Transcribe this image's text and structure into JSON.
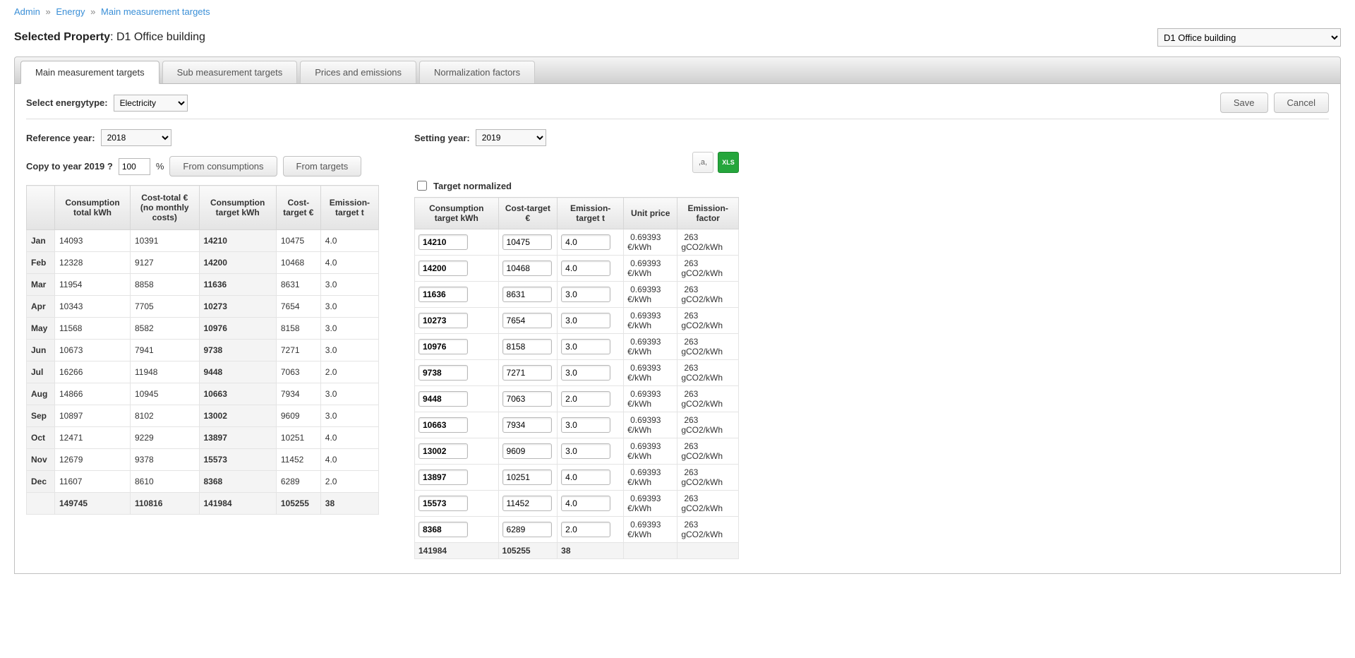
{
  "breadcrumbs": {
    "items": [
      "Admin",
      "Energy",
      "Main measurement targets"
    ]
  },
  "header": {
    "label": "Selected Property",
    "property_name": "D1 Office building",
    "property_select": "D1 Office building"
  },
  "tabs": [
    {
      "label": "Main measurement targets",
      "active": true
    },
    {
      "label": "Sub measurement targets",
      "active": false
    },
    {
      "label": "Prices and emissions",
      "active": false
    },
    {
      "label": "Normalization factors",
      "active": false
    }
  ],
  "controls": {
    "select_energytype_label": "Select energytype:",
    "energytype_value": "Electricity",
    "save_label": "Save",
    "cancel_label": "Cancel",
    "reference_year_label": "Reference year:",
    "reference_year_value": "2018",
    "setting_year_label": "Setting year:",
    "setting_year_value": "2019",
    "copy_label": "Copy to year 2019 ?",
    "copy_pct": "100",
    "pct_symbol": "%",
    "from_consumptions_label": "From consumptions",
    "from_targets_label": "From targets",
    "target_normalized_label": "Target normalized",
    "csv_label": ",a,",
    "xls_label": "XLS"
  },
  "left_table": {
    "headers": [
      "",
      "Consumption total kWh",
      "Cost-total € (no monthly costs)",
      "Consumption target kWh",
      "Cost-target €",
      "Emission-target t"
    ],
    "rows": [
      {
        "m": "Jan",
        "c": "14093",
        "ct": "10391",
        "cg": "14210",
        "cgc": "10475",
        "e": "4.0"
      },
      {
        "m": "Feb",
        "c": "12328",
        "ct": "9127",
        "cg": "14200",
        "cgc": "10468",
        "e": "4.0"
      },
      {
        "m": "Mar",
        "c": "11954",
        "ct": "8858",
        "cg": "11636",
        "cgc": "8631",
        "e": "3.0"
      },
      {
        "m": "Apr",
        "c": "10343",
        "ct": "7705",
        "cg": "10273",
        "cgc": "7654",
        "e": "3.0"
      },
      {
        "m": "May",
        "c": "11568",
        "ct": "8582",
        "cg": "10976",
        "cgc": "8158",
        "e": "3.0"
      },
      {
        "m": "Jun",
        "c": "10673",
        "ct": "7941",
        "cg": "9738",
        "cgc": "7271",
        "e": "3.0"
      },
      {
        "m": "Jul",
        "c": "16266",
        "ct": "11948",
        "cg": "9448",
        "cgc": "7063",
        "e": "2.0"
      },
      {
        "m": "Aug",
        "c": "14866",
        "ct": "10945",
        "cg": "10663",
        "cgc": "7934",
        "e": "3.0"
      },
      {
        "m": "Sep",
        "c": "10897",
        "ct": "8102",
        "cg": "13002",
        "cgc": "9609",
        "e": "3.0"
      },
      {
        "m": "Oct",
        "c": "12471",
        "ct": "9229",
        "cg": "13897",
        "cgc": "10251",
        "e": "4.0"
      },
      {
        "m": "Nov",
        "c": "12679",
        "ct": "9378",
        "cg": "15573",
        "cgc": "11452",
        "e": "4.0"
      },
      {
        "m": "Dec",
        "c": "11607",
        "ct": "8610",
        "cg": "8368",
        "cgc": "6289",
        "e": "2.0"
      }
    ],
    "totals": {
      "c": "149745",
      "ct": "110816",
      "cg": "141984",
      "cgc": "105255",
      "e": "38"
    }
  },
  "right_table": {
    "headers": [
      "Consumption target kWh",
      "Cost-target €",
      "Emission-target t",
      "Unit price",
      "Emission-factor"
    ],
    "unit_price": "0.69393 €/kWh",
    "emission_factor": "263 gCO2/kWh",
    "rows": [
      {
        "cg": "14210",
        "cgc": "10475",
        "e": "4.0"
      },
      {
        "cg": "14200",
        "cgc": "10468",
        "e": "4.0"
      },
      {
        "cg": "11636",
        "cgc": "8631",
        "e": "3.0"
      },
      {
        "cg": "10273",
        "cgc": "7654",
        "e": "3.0"
      },
      {
        "cg": "10976",
        "cgc": "8158",
        "e": "3.0"
      },
      {
        "cg": "9738",
        "cgc": "7271",
        "e": "3.0"
      },
      {
        "cg": "9448",
        "cgc": "7063",
        "e": "2.0"
      },
      {
        "cg": "10663",
        "cgc": "7934",
        "e": "3.0"
      },
      {
        "cg": "13002",
        "cgc": "9609",
        "e": "3.0"
      },
      {
        "cg": "13897",
        "cgc": "10251",
        "e": "4.0"
      },
      {
        "cg": "15573",
        "cgc": "11452",
        "e": "4.0"
      },
      {
        "cg": "8368",
        "cgc": "6289",
        "e": "2.0"
      }
    ],
    "totals": {
      "cg": "141984",
      "cgc": "105255",
      "e": "38"
    }
  }
}
